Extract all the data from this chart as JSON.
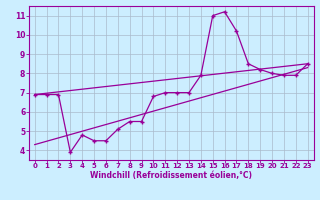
{
  "xlabel": "Windchill (Refroidissement éolien,°C)",
  "xlim": [
    -0.5,
    23.5
  ],
  "ylim": [
    3.5,
    11.5
  ],
  "yticks": [
    4,
    5,
    6,
    7,
    8,
    9,
    10,
    11
  ],
  "xticks": [
    0,
    1,
    2,
    3,
    4,
    5,
    6,
    7,
    8,
    9,
    10,
    11,
    12,
    13,
    14,
    15,
    16,
    17,
    18,
    19,
    20,
    21,
    22,
    23
  ],
  "background_color": "#cceeff",
  "line_color": "#990099",
  "grid_color": "#aabbcc",
  "line1_x": [
    0,
    1,
    2,
    3,
    4,
    5,
    6,
    7,
    8,
    9,
    10,
    11,
    12,
    13,
    14,
    15,
    16,
    17,
    18,
    19,
    20,
    21,
    22,
    23
  ],
  "line1_y": [
    6.9,
    6.9,
    6.9,
    3.9,
    4.8,
    4.5,
    4.5,
    5.1,
    5.5,
    5.5,
    6.8,
    7.0,
    7.0,
    7.0,
    7.9,
    11.0,
    11.2,
    10.2,
    8.5,
    8.2,
    8.0,
    7.9,
    7.9,
    8.5
  ],
  "line2_x": [
    0,
    23
  ],
  "line2_y": [
    6.9,
    8.5
  ],
  "line3_x": [
    0,
    23
  ],
  "line3_y": [
    4.3,
    8.3
  ],
  "tick_fontsize": 5,
  "xlabel_fontsize": 5.5
}
